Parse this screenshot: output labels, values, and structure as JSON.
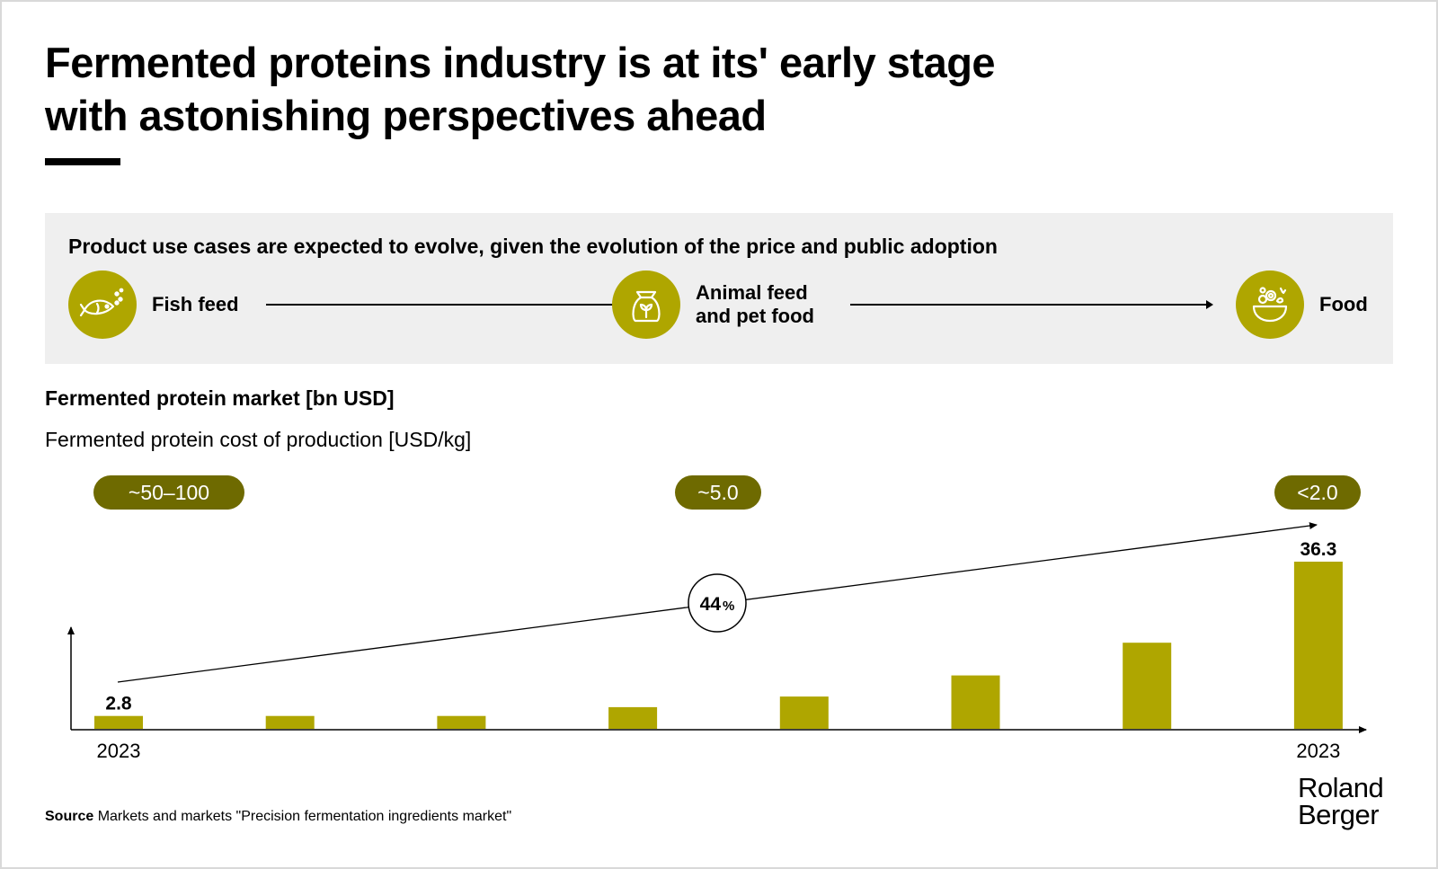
{
  "title_lines": [
    "Fermented proteins industry is at its' early stage",
    "with astonishing perspectives ahead"
  ],
  "panel": {
    "heading": "Product use cases are expected to evolve, given the evolution of the price and public adoption",
    "stages": [
      {
        "label": "Fish feed",
        "icon": "fish-icon"
      },
      {
        "label": "Animal feed\nand pet food",
        "icon": "feed-bag-icon"
      },
      {
        "label": "Food",
        "icon": "food-bowl-icon"
      }
    ],
    "icon_color": "#afa600"
  },
  "chart_data": {
    "type": "bar",
    "title": "Fermented protein market [bn USD]",
    "subtitle": "Fermented protein cost of production [USD/kg]",
    "values": [
      2.8,
      2.8,
      2.8,
      4.7,
      7.0,
      11.6,
      18.7,
      36.3
    ],
    "x_labels": [
      "2023",
      "",
      "",
      "",
      "",
      "",
      "",
      "2023"
    ],
    "data_labels": [
      "2.8",
      "",
      "",
      "",
      "",
      "",
      "",
      "36.3"
    ],
    "ylim": [
      0,
      36.3
    ],
    "growth_label": "44",
    "growth_unit": "%",
    "cost_pills": [
      "~50–100",
      "~5.0",
      "<2.0"
    ],
    "bar_color": "#afa600",
    "pill_color": "#6e6a00"
  },
  "source": {
    "label": "Source",
    "text": "Markets and markets \"Precision fermentation ingredients market\""
  },
  "logo": "Roland\nBerger"
}
